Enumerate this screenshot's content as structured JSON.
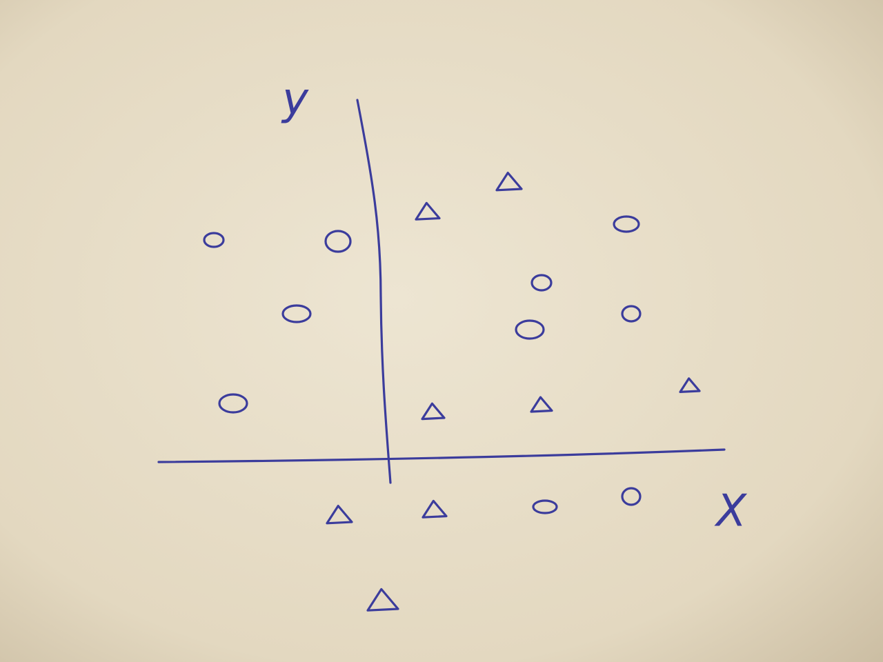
{
  "labels": {
    "y": "y",
    "x": "X"
  }
}
